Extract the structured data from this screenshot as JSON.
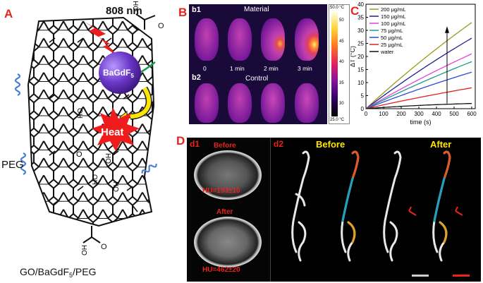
{
  "panelA": {
    "label": "A",
    "laser": "808 nm",
    "particle": "BaGdF",
    "particle_sub": "5",
    "heat": "Heat",
    "peg": "PEG",
    "oh": "OH",
    "ho": "HO",
    "caption": "GO/BaGdF",
    "caption_sub": "5",
    "caption_end": "/PEG"
  },
  "panelB": {
    "label": "B",
    "b1": "b1",
    "b1_title": "Material",
    "b2": "b2",
    "b2_title": "Control",
    "times": [
      "0",
      "1 min",
      "2 min",
      "3 min"
    ],
    "scale_max": "50.0 °C",
    "scale_min": "25.0 °C",
    "scale_ticks": [
      "50",
      "45",
      "40",
      "35",
      "30",
      "25"
    ]
  },
  "panelC": {
    "label": "C",
    "chart_data": {
      "type": "line",
      "xlabel": "time (s)",
      "ylabel": "ΔT (°C)",
      "xlim": [
        0,
        620
      ],
      "ylim": [
        0,
        40
      ],
      "xticks": [
        0,
        100,
        200,
        300,
        400,
        500,
        600
      ],
      "yticks": [
        0,
        5,
        10,
        15,
        20,
        25,
        30,
        35,
        40
      ],
      "legend_placement": "top-left",
      "series": [
        {
          "name": "200 μg/mL",
          "color": "#9a9a1e",
          "final": 33
        },
        {
          "name": "150 μg/mL",
          "color": "#1f1f8f",
          "final": 27
        },
        {
          "name": "100 μg/mL",
          "color": "#e040e0",
          "final": 21
        },
        {
          "name": "75 μg/mL",
          "color": "#1a9a8a",
          "final": 18
        },
        {
          "name": "50 μg/mL",
          "color": "#2a4ad8",
          "final": 14
        },
        {
          "name": "25 μg/mL",
          "color": "#e02020",
          "final": 8
        },
        {
          "name": "water",
          "color": "#111111",
          "final": 2
        }
      ]
    }
  },
  "panelD": {
    "label": "D",
    "d1": "d1",
    "before": "Before",
    "after": "After",
    "hu_before": "HU=153±10",
    "hu_after": "HU=462±20",
    "d2": "d2",
    "d2_before": "Before",
    "d2_after": "After"
  },
  "colors": {
    "red": "#e8231c",
    "yellow": "#ffe600"
  }
}
